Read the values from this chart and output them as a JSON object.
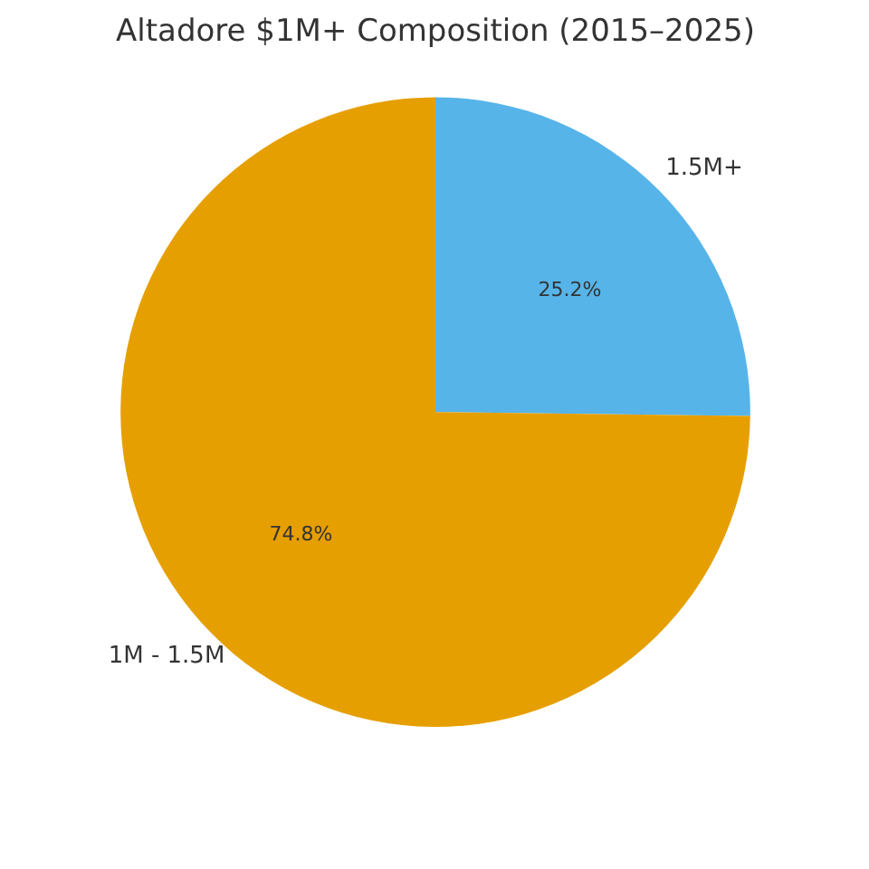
{
  "chart_data": {
    "type": "pie",
    "title": "Altadore $1M+ Composition (2015–2025)",
    "categories": [
      "1.5M+",
      "1M - 1.5M"
    ],
    "values": [
      25.2,
      74.8
    ],
    "colors": [
      "#56b4e9",
      "#e69f00"
    ],
    "value_labels": [
      "25.2%",
      "74.8%"
    ]
  }
}
